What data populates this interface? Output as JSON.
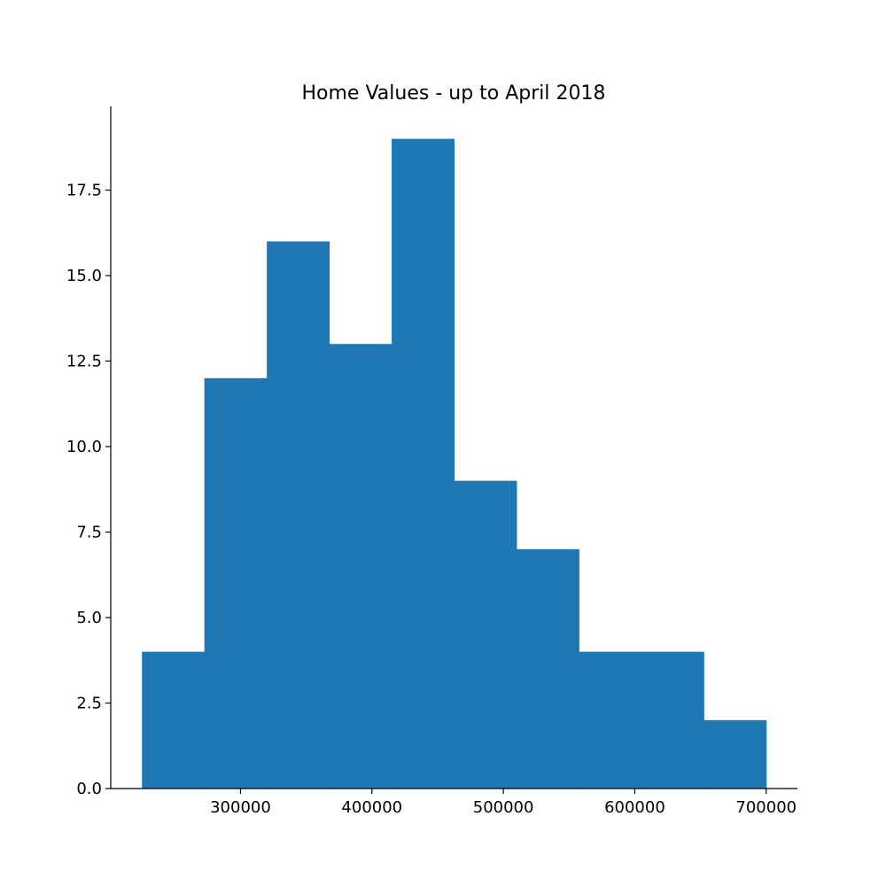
{
  "chart_data": {
    "type": "bar",
    "title": "Home Values - up to April 2018",
    "xlabel": "",
    "ylabel": "",
    "bins": [
      {
        "x0": 225000,
        "x1": 272500,
        "count": 4
      },
      {
        "x0": 272500,
        "x1": 320000,
        "count": 12
      },
      {
        "x0": 320000,
        "x1": 367500,
        "count": 16
      },
      {
        "x0": 367500,
        "x1": 415000,
        "count": 13
      },
      {
        "x0": 415000,
        "x1": 462500,
        "count": 19
      },
      {
        "x0": 462500,
        "x1": 510000,
        "count": 9
      },
      {
        "x0": 510000,
        "x1": 557500,
        "count": 7
      },
      {
        "x0": 557500,
        "x1": 605000,
        "count": 4
      },
      {
        "x0": 605000,
        "x1": 652500,
        "count": 4
      },
      {
        "x0": 652500,
        "x1": 700000,
        "count": 2
      }
    ],
    "xlim": [
      201250,
      723750
    ],
    "ylim": [
      0,
      19.95
    ],
    "x_ticks": [
      300000,
      400000,
      500000,
      600000,
      700000
    ],
    "x_tick_labels": [
      "300000",
      "400000",
      "500000",
      "600000",
      "700000"
    ],
    "y_ticks": [
      0,
      2.5,
      5,
      7.5,
      10,
      12.5,
      15,
      17.5
    ],
    "y_tick_labels": [
      "0.0",
      "2.5",
      "5.0",
      "7.5",
      "10.0",
      "12.5",
      "15.0",
      "17.5"
    ],
    "bar_color": "#1f77b4",
    "grid": false
  }
}
